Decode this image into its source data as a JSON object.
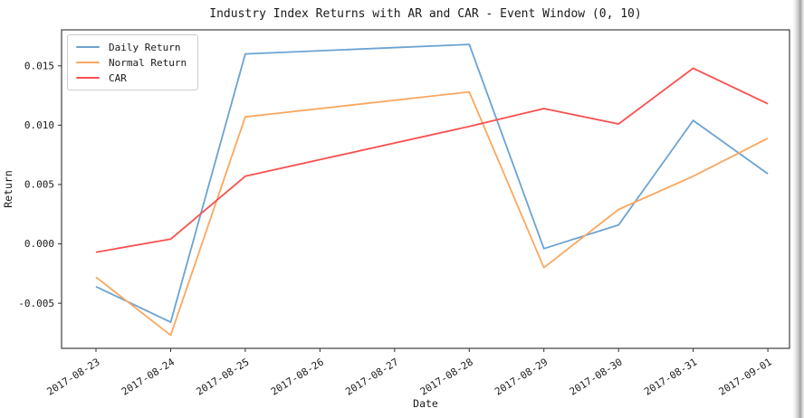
{
  "chart_data": {
    "type": "line",
    "title": "Industry Index Returns with AR and CAR - Event Window (0, 10)",
    "xlabel": "Date",
    "ylabel": "Return",
    "x": [
      "2017-08-23",
      "2017-08-24",
      "2017-08-25",
      "2017-08-28",
      "2017-08-29",
      "2017-08-30",
      "2017-08-31",
      "2017-09-01"
    ],
    "series": [
      {
        "name": "Daily Return",
        "color": "#6ba3d1",
        "values": [
          -0.0036,
          -0.0066,
          0.016,
          0.0168,
          -0.0004,
          0.0016,
          0.0104,
          0.0059
        ]
      },
      {
        "name": "Normal Return",
        "color": "#fba75f",
        "values": [
          -0.0028,
          -0.0077,
          0.0107,
          0.0128,
          -0.002,
          0.0029,
          0.0057,
          0.0089
        ]
      },
      {
        "name": "CAR",
        "color": "#f8504f",
        "values": [
          -0.0007,
          0.0004,
          0.0057,
          0.0099,
          0.0114,
          0.0101,
          0.0148,
          0.0118
        ]
      }
    ],
    "x_tick_labels": [
      "2017-08-23",
      "2017-08-24",
      "2017-08-25",
      "2017-08-26",
      "2017-08-27",
      "2017-08-28",
      "2017-08-29",
      "2017-08-30",
      "2017-08-31",
      "2017-09-01"
    ],
    "y_ticks": [
      -0.005,
      0.0,
      0.005,
      0.01,
      0.015
    ],
    "y_tick_labels": [
      "-0.005",
      "0.000",
      "0.005",
      "0.010",
      "0.015"
    ],
    "xlim_days": [
      -0.461,
      9.29
    ],
    "ylim": [
      -0.0088,
      0.01803
    ],
    "legend_position": "upper left",
    "grid": false,
    "axis_color": "#2f2f2f",
    "text_color": "#1a1a1a",
    "background": "#ffffff"
  },
  "window": {
    "right_edge_scrollbar": "scrollbar-track-edge"
  }
}
